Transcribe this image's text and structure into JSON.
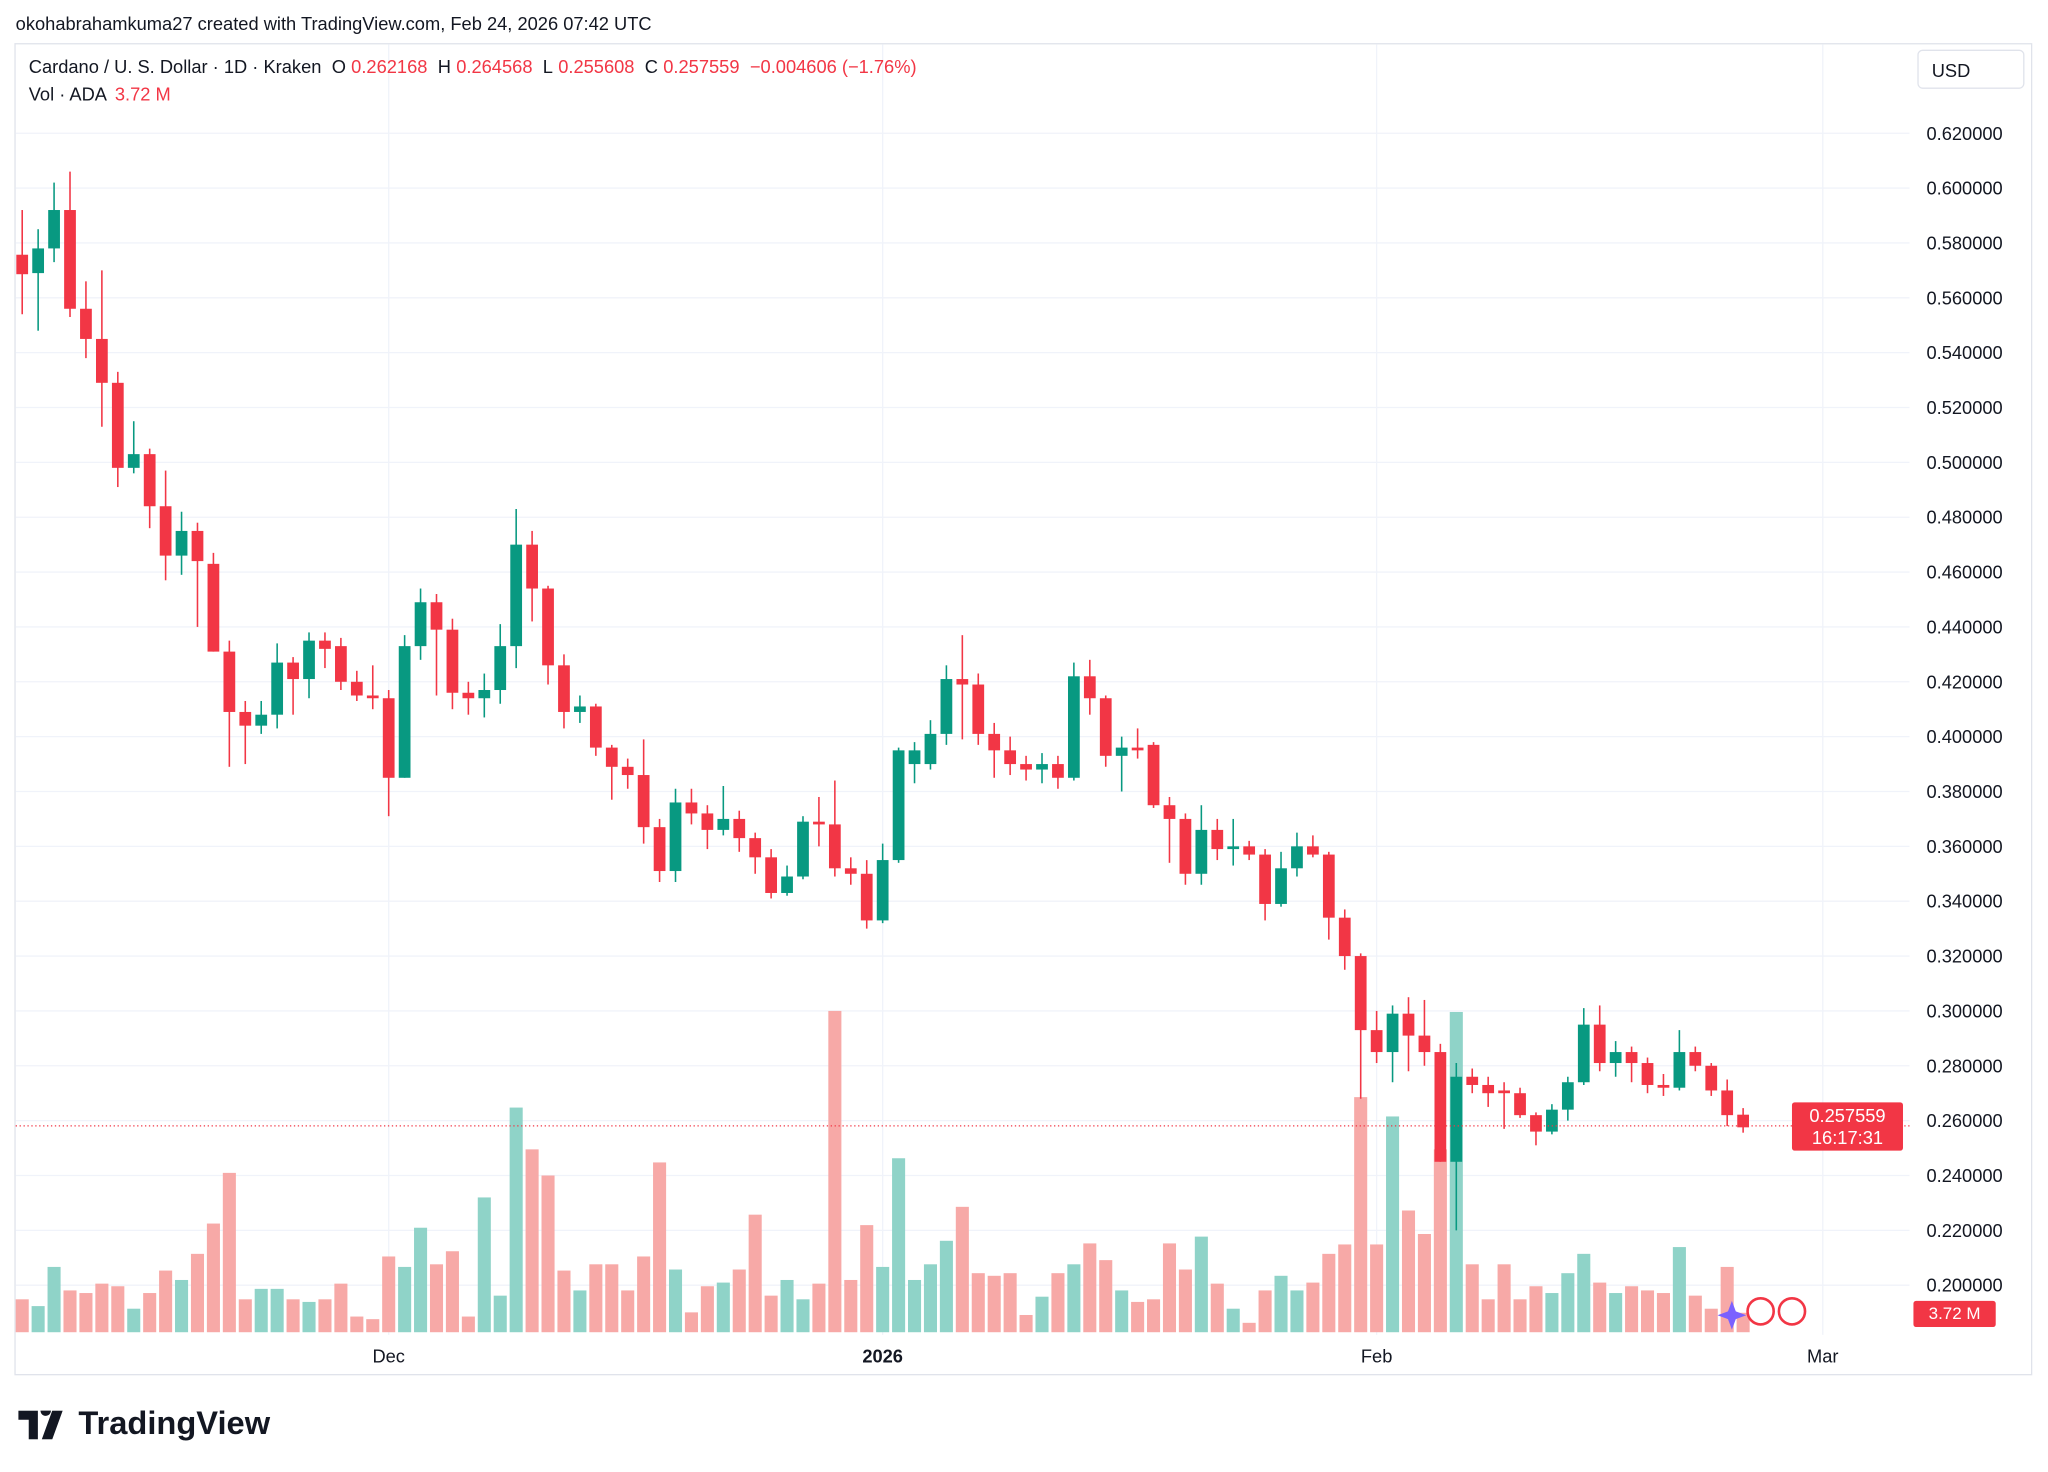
{
  "credit": "okohabrahamkuma27 created with TradingView.com, Feb 24, 2026 07:42 UTC",
  "legend": {
    "symbol": "Cardano / U. S. Dollar · 1D · Kraken",
    "o_label": "O",
    "o": "0.262168",
    "h_label": "H",
    "h": "0.264568",
    "l_label": "L",
    "l": "0.255608",
    "c_label": "C",
    "c": "0.257559",
    "change": "−0.004606 (−1.76%)",
    "vol_label": "Vol · ADA",
    "vol_value": "3.72 M"
  },
  "currency": "USD",
  "price_label": {
    "price": "0.257559",
    "countdown": "16:17:31"
  },
  "volume_label": "3.72 M",
  "logo_text": "TradingView",
  "colors": {
    "up": "#089981",
    "down": "#f23645",
    "up_vol": "#8fd3c8",
    "down_vol": "#f7a9a7",
    "grid": "#f0f3fa"
  },
  "chart_data": {
    "type": "candlestick",
    "title": "Cardano / U. S. Dollar · 1D · Kraken",
    "start_date": "2025-11-08",
    "end_date": "2026-02-24",
    "y_ticks": [
      "0.620000",
      "0.600000",
      "0.580000",
      "0.560000",
      "0.540000",
      "0.520000",
      "0.500000",
      "0.480000",
      "0.460000",
      "0.440000",
      "0.420000",
      "0.400000",
      "0.380000",
      "0.360000",
      "0.340000",
      "0.320000",
      "0.300000",
      "0.280000",
      "0.260000",
      "0.240000",
      "0.220000",
      "0.200000"
    ],
    "ylim": [
      0.19,
      0.63
    ],
    "x_ticks": [
      {
        "label": "Dec",
        "day_index": 23,
        "bold": false
      },
      {
        "label": "2026",
        "day_index": 54,
        "bold": true
      },
      {
        "label": "Feb",
        "day_index": 85,
        "bold": false
      },
      {
        "label": "Mar",
        "day_index": 113,
        "bold": false
      }
    ],
    "last_price": 0.257559,
    "volume_unit": "M ADA",
    "ohlc": [
      [
        0.5757,
        0.592,
        0.554,
        0.5686
      ],
      [
        0.569,
        0.585,
        0.548,
        0.578
      ],
      [
        0.578,
        0.602,
        0.573,
        0.592
      ],
      [
        0.592,
        0.606,
        0.553,
        0.556
      ],
      [
        0.556,
        0.566,
        0.538,
        0.545
      ],
      [
        0.545,
        0.57,
        0.513,
        0.529
      ],
      [
        0.529,
        0.533,
        0.491,
        0.498
      ],
      [
        0.498,
        0.515,
        0.496,
        0.503
      ],
      [
        0.503,
        0.505,
        0.476,
        0.484
      ],
      [
        0.484,
        0.497,
        0.457,
        0.466
      ],
      [
        0.466,
        0.482,
        0.459,
        0.475
      ],
      [
        0.475,
        0.478,
        0.44,
        0.464
      ],
      [
        0.463,
        0.467,
        0.431,
        0.431
      ],
      [
        0.431,
        0.435,
        0.389,
        0.409
      ],
      [
        0.409,
        0.413,
        0.39,
        0.404
      ],
      [
        0.404,
        0.413,
        0.401,
        0.408
      ],
      [
        0.408,
        0.434,
        0.403,
        0.427
      ],
      [
        0.427,
        0.429,
        0.408,
        0.421
      ],
      [
        0.421,
        0.438,
        0.414,
        0.435
      ],
      [
        0.435,
        0.438,
        0.425,
        0.432
      ],
      [
        0.433,
        0.436,
        0.417,
        0.42
      ],
      [
        0.42,
        0.424,
        0.413,
        0.415
      ],
      [
        0.415,
        0.426,
        0.41,
        0.414
      ],
      [
        0.414,
        0.417,
        0.371,
        0.385
      ],
      [
        0.385,
        0.437,
        0.385,
        0.433
      ],
      [
        0.433,
        0.454,
        0.428,
        0.449
      ],
      [
        0.449,
        0.452,
        0.415,
        0.439
      ],
      [
        0.439,
        0.443,
        0.41,
        0.416
      ],
      [
        0.416,
        0.42,
        0.408,
        0.414
      ],
      [
        0.414,
        0.423,
        0.407,
        0.417
      ],
      [
        0.417,
        0.441,
        0.412,
        0.433
      ],
      [
        0.433,
        0.483,
        0.425,
        0.47
      ],
      [
        0.47,
        0.475,
        0.442,
        0.454
      ],
      [
        0.454,
        0.455,
        0.419,
        0.426
      ],
      [
        0.426,
        0.43,
        0.403,
        0.409
      ],
      [
        0.409,
        0.415,
        0.405,
        0.411
      ],
      [
        0.411,
        0.412,
        0.393,
        0.396
      ],
      [
        0.396,
        0.397,
        0.377,
        0.389
      ],
      [
        0.389,
        0.392,
        0.381,
        0.386
      ],
      [
        0.386,
        0.399,
        0.361,
        0.367
      ],
      [
        0.367,
        0.37,
        0.347,
        0.351
      ],
      [
        0.351,
        0.381,
        0.347,
        0.376
      ],
      [
        0.376,
        0.381,
        0.368,
        0.372
      ],
      [
        0.372,
        0.375,
        0.359,
        0.366
      ],
      [
        0.366,
        0.382,
        0.364,
        0.37
      ],
      [
        0.37,
        0.373,
        0.358,
        0.363
      ],
      [
        0.363,
        0.365,
        0.35,
        0.356
      ],
      [
        0.356,
        0.359,
        0.341,
        0.343
      ],
      [
        0.343,
        0.353,
        0.342,
        0.349
      ],
      [
        0.349,
        0.371,
        0.348,
        0.369
      ],
      [
        0.369,
        0.378,
        0.36,
        0.368
      ],
      [
        0.368,
        0.384,
        0.349,
        0.352
      ],
      [
        0.352,
        0.356,
        0.346,
        0.35
      ],
      [
        0.35,
        0.355,
        0.33,
        0.333
      ],
      [
        0.333,
        0.361,
        0.332,
        0.355
      ],
      [
        0.355,
        0.396,
        0.354,
        0.395
      ],
      [
        0.39,
        0.398,
        0.383,
        0.395
      ],
      [
        0.39,
        0.406,
        0.388,
        0.401
      ],
      [
        0.401,
        0.426,
        0.397,
        0.421
      ],
      [
        0.421,
        0.437,
        0.399,
        0.419
      ],
      [
        0.419,
        0.423,
        0.397,
        0.401
      ],
      [
        0.401,
        0.405,
        0.385,
        0.395
      ],
      [
        0.395,
        0.4,
        0.386,
        0.39
      ],
      [
        0.39,
        0.393,
        0.384,
        0.388
      ],
      [
        0.388,
        0.394,
        0.383,
        0.39
      ],
      [
        0.39,
        0.393,
        0.381,
        0.385
      ],
      [
        0.385,
        0.427,
        0.384,
        0.422
      ],
      [
        0.422,
        0.428,
        0.408,
        0.414
      ],
      [
        0.414,
        0.415,
        0.389,
        0.393
      ],
      [
        0.393,
        0.4,
        0.38,
        0.396
      ],
      [
        0.396,
        0.403,
        0.392,
        0.395
      ],
      [
        0.397,
        0.398,
        0.374,
        0.375
      ],
      [
        0.375,
        0.378,
        0.354,
        0.37
      ],
      [
        0.37,
        0.372,
        0.346,
        0.35
      ],
      [
        0.35,
        0.375,
        0.346,
        0.366
      ],
      [
        0.366,
        0.37,
        0.355,
        0.359
      ],
      [
        0.359,
        0.37,
        0.353,
        0.36
      ],
      [
        0.36,
        0.362,
        0.355,
        0.357
      ],
      [
        0.357,
        0.359,
        0.333,
        0.339
      ],
      [
        0.339,
        0.358,
        0.338,
        0.352
      ],
      [
        0.352,
        0.365,
        0.349,
        0.36
      ],
      [
        0.36,
        0.364,
        0.356,
        0.357
      ],
      [
        0.357,
        0.358,
        0.326,
        0.334
      ],
      [
        0.334,
        0.337,
        0.315,
        0.32
      ],
      [
        0.32,
        0.321,
        0.268,
        0.293
      ],
      [
        0.293,
        0.3,
        0.281,
        0.285
      ],
      [
        0.285,
        0.302,
        0.274,
        0.299
      ],
      [
        0.299,
        0.305,
        0.278,
        0.291
      ],
      [
        0.291,
        0.304,
        0.28,
        0.285
      ],
      [
        0.285,
        0.288,
        0.245,
        0.245
      ],
      [
        0.245,
        0.281,
        0.22,
        0.276
      ],
      [
        0.276,
        0.279,
        0.27,
        0.273
      ],
      [
        0.273,
        0.276,
        0.265,
        0.27
      ],
      [
        0.271,
        0.274,
        0.257,
        0.27
      ],
      [
        0.27,
        0.272,
        0.261,
        0.262
      ],
      [
        0.262,
        0.263,
        0.251,
        0.256
      ],
      [
        0.256,
        0.266,
        0.255,
        0.264
      ],
      [
        0.264,
        0.276,
        0.26,
        0.274
      ],
      [
        0.274,
        0.301,
        0.273,
        0.295
      ],
      [
        0.295,
        0.302,
        0.278,
        0.281
      ],
      [
        0.281,
        0.289,
        0.276,
        0.285
      ],
      [
        0.285,
        0.287,
        0.274,
        0.281
      ],
      [
        0.281,
        0.283,
        0.27,
        0.273
      ],
      [
        0.273,
        0.277,
        0.269,
        0.272
      ],
      [
        0.272,
        0.293,
        0.271,
        0.285
      ],
      [
        0.285,
        0.287,
        0.278,
        0.28
      ],
      [
        0.28,
        0.281,
        0.269,
        0.271
      ],
      [
        0.271,
        0.275,
        0.258,
        0.262
      ],
      [
        0.262168,
        0.264568,
        0.255608,
        0.257559
      ]
    ],
    "volume": [
      6.3,
      5,
      12.5,
      8,
      7.5,
      9.3,
      8.8,
      4.5,
      7.5,
      11.8,
      10,
      15,
      20.8,
      30.5,
      6.3,
      8.3,
      8.3,
      6.3,
      5.8,
      6.3,
      9.3,
      3,
      2.5,
      14.5,
      12.5,
      20,
      13,
      15.5,
      3,
      25.8,
      7,
      43,
      35,
      30,
      11.8,
      8,
      13,
      13,
      8,
      14.5,
      32.5,
      12,
      3.8,
      8.8,
      9.5,
      12,
      22.5,
      7,
      10,
      6.3,
      9.3,
      61.5,
      10,
      20.5,
      12.5,
      33.3,
      10,
      13,
      17.5,
      24,
      11.3,
      10.8,
      11.3,
      3.3,
      6.8,
      11.3,
      13,
      17,
      13.8,
      8,
      5.8,
      6.3,
      17,
      12,
      18.3,
      9.3,
      4.5,
      1.8,
      8,
      10.8,
      8,
      9.5,
      15,
      16.8,
      45,
      16.8,
      41.3,
      23.3,
      18.8,
      35,
      61.3,
      13,
      6.3,
      13,
      6.3,
      8.8,
      7.5,
      11.3,
      15,
      9.5,
      7.5,
      8.8,
      8,
      7.5,
      16.3,
      7,
      4.5,
      12.5,
      3.72
    ]
  }
}
